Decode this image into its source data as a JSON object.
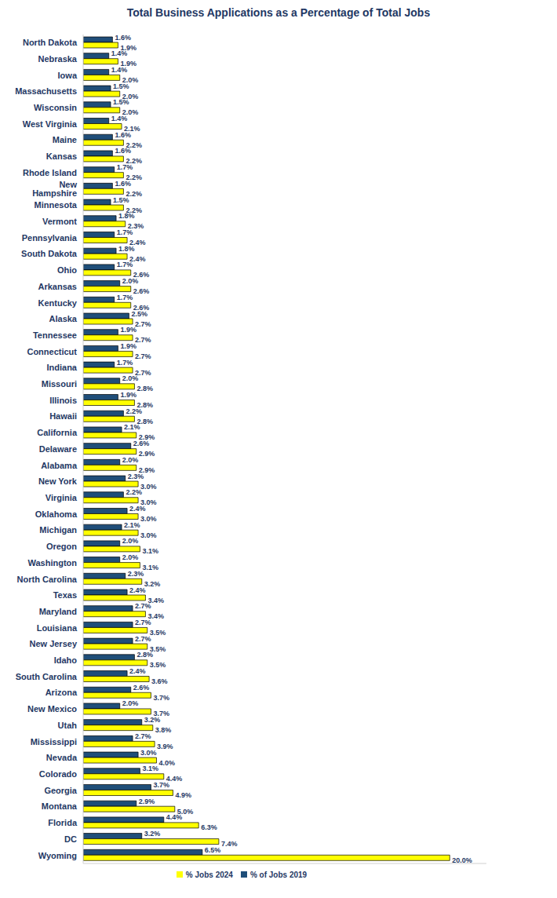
{
  "chart_data": {
    "type": "bar",
    "title": "Total Business Applications as a Percentage of Total Jobs",
    "orientation": "horizontal",
    "data_labels": true,
    "tick_labels": "y",
    "grid": false,
    "legend": "bottom",
    "xlim": [
      0,
      22
    ],
    "categories": [
      "North Dakota",
      "Nebraska",
      "Iowa",
      "Massachusetts",
      "Wisconsin",
      "West Virginia",
      "Maine",
      "Kansas",
      "Rhode Island",
      "New Hampshire",
      "Minnesota",
      "Vermont",
      "Pennsylvania",
      "South Dakota",
      "Ohio",
      "Arkansas",
      "Kentucky",
      "Alaska",
      "Tennessee",
      "Connecticut",
      "Indiana",
      "Missouri",
      "Illinois",
      "Hawaii",
      "California",
      "Delaware",
      "Alabama",
      "New York",
      "Virginia",
      "Oklahoma",
      "Michigan",
      "Oregon",
      "Washington",
      "North Carolina",
      "Texas",
      "Maryland",
      "Louisiana",
      "New Jersey",
      "Idaho",
      "South Carolina",
      "Arizona",
      "New Mexico",
      "Utah",
      "Mississippi",
      "Nevada",
      "Colorado",
      "Georgia",
      "Montana",
      "Florida",
      "DC",
      "Wyoming"
    ],
    "series": [
      {
        "name": "% of Jobs 2019",
        "color": "#1f4e79",
        "values": [
          1.6,
          1.4,
          1.4,
          1.5,
          1.5,
          1.4,
          1.6,
          1.6,
          1.7,
          1.6,
          1.5,
          1.8,
          1.7,
          1.8,
          1.7,
          2.0,
          1.7,
          2.5,
          1.9,
          1.9,
          1.7,
          2.0,
          1.9,
          2.2,
          2.1,
          2.6,
          2.0,
          2.3,
          2.2,
          2.4,
          2.1,
          2.0,
          2.0,
          2.3,
          2.4,
          2.7,
          2.7,
          2.7,
          2.8,
          2.4,
          2.6,
          2.0,
          3.2,
          2.7,
          3.0,
          3.1,
          3.7,
          2.9,
          4.4,
          3.2,
          6.5
        ],
        "value_labels": [
          "1.6%",
          "1.4%",
          "1.4%",
          "1.5%",
          "1.5%",
          "1.4%",
          "1.6%",
          "1.6%",
          "1.7%",
          "1.6%",
          "1.5%",
          "1.8%",
          "1.7%",
          "1.8%",
          "1.7%",
          "2.0%",
          "1.7%",
          "2.5%",
          "1.9%",
          "1.9%",
          "1.7%",
          "2.0%",
          "1.9%",
          "2.2%",
          "2.1%",
          "2.6%",
          "2.0%",
          "2.3%",
          "2.2%",
          "2.4%",
          "2.1%",
          "2.0%",
          "2.0%",
          "2.3%",
          "2.4%",
          "2.7%",
          "2.7%",
          "2.7%",
          "2.8%",
          "2.4%",
          "2.6%",
          "2.0%",
          "3.2%",
          "2.7%",
          "3.0%",
          "3.1%",
          "3.7%",
          "2.9%",
          "4.4%",
          "3.2%",
          "6.5%"
        ]
      },
      {
        "name": "% Jobs 2024",
        "color": "#ffff00",
        "values": [
          1.9,
          1.9,
          2.0,
          2.0,
          2.0,
          2.1,
          2.2,
          2.2,
          2.2,
          2.2,
          2.2,
          2.3,
          2.4,
          2.4,
          2.6,
          2.6,
          2.6,
          2.7,
          2.7,
          2.7,
          2.7,
          2.8,
          2.8,
          2.8,
          2.9,
          2.9,
          2.9,
          3.0,
          3.0,
          3.0,
          3.0,
          3.1,
          3.1,
          3.2,
          3.4,
          3.4,
          3.5,
          3.5,
          3.5,
          3.6,
          3.7,
          3.7,
          3.8,
          3.9,
          4.0,
          4.4,
          4.9,
          5.0,
          6.3,
          7.4,
          20.0
        ],
        "value_labels": [
          "1.9%",
          "1.9%",
          "2.0%",
          "2.0%",
          "2.0%",
          "2.1%",
          "2.2%",
          "2.2%",
          "2.2%",
          "2.2%",
          "2.2%",
          "2.3%",
          "2.4%",
          "2.4%",
          "2.6%",
          "2.6%",
          "2.6%",
          "2.7%",
          "2.7%",
          "2.7%",
          "2.7%",
          "2.8%",
          "2.8%",
          "2.8%",
          "2.9%",
          "2.9%",
          "2.9%",
          "3.0%",
          "3.0%",
          "3.0%",
          "3.0%",
          "3.1%",
          "3.1%",
          "3.2%",
          "3.4%",
          "3.4%",
          "3.5%",
          "3.5%",
          "3.5%",
          "3.6%",
          "3.7%",
          "3.7%",
          "3.8%",
          "3.9%",
          "4.0%",
          "4.4%",
          "4.9%",
          "5.0%",
          "6.3%",
          "7.4%",
          "20.0%"
        ]
      }
    ]
  }
}
